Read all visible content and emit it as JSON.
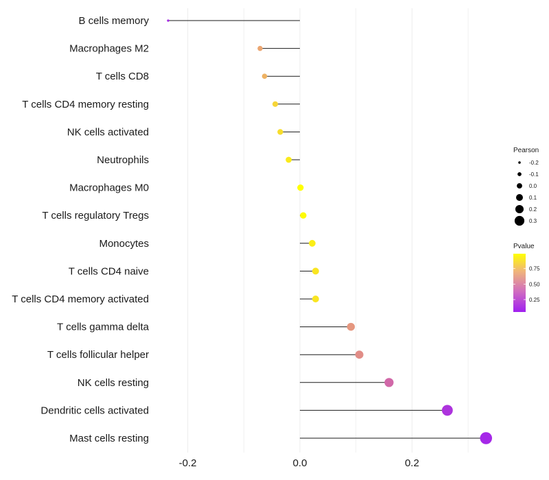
{
  "chart_data": {
    "type": "lollipop",
    "categories": [
      "B cells memory",
      "Macrophages M2",
      "T cells CD8",
      "T cells CD4 memory resting",
      "NK cells activated",
      "Neutrophils",
      "Macrophages M0",
      "T cells regulatory  Tregs ",
      "Monocytes",
      "T cells CD4 naive",
      "T cells CD4 memory activated",
      "T cells gamma delta",
      "T cells follicular helper",
      "NK cells resting",
      "Dendritic cells activated",
      "Mast cells resting"
    ],
    "values": [
      -0.235,
      -0.071,
      -0.063,
      -0.044,
      -0.035,
      -0.02,
      0.001,
      0.006,
      0.022,
      0.028,
      0.028,
      0.091,
      0.106,
      0.159,
      0.263,
      0.332
    ],
    "pvalues": [
      0.05,
      0.78,
      0.82,
      0.9,
      0.92,
      0.95,
      1.0,
      0.99,
      0.96,
      0.94,
      0.94,
      0.7,
      0.65,
      0.45,
      0.12,
      0.05
    ],
    "xlim": [
      -0.3,
      0.36
    ],
    "xticks": [
      -0.2,
      0.0,
      0.2
    ],
    "xtick_labels": [
      "-0.2",
      "0.0",
      "0.2"
    ],
    "legend_size": {
      "title": "Pearson",
      "breaks": [
        -0.2,
        -0.1,
        0.0,
        0.1,
        0.2,
        0.3
      ],
      "labels": [
        "-0.2",
        "-0.1",
        "0.0",
        "0.1",
        "0.2",
        "0.3"
      ]
    },
    "legend_color": {
      "title": "Pvalue",
      "breaks": [
        0.75,
        0.5,
        0.25
      ],
      "labels": [
        "0.75",
        "0.50",
        "0.25"
      ],
      "low_color": "#a020f0",
      "high_color": "#ffff00"
    }
  }
}
